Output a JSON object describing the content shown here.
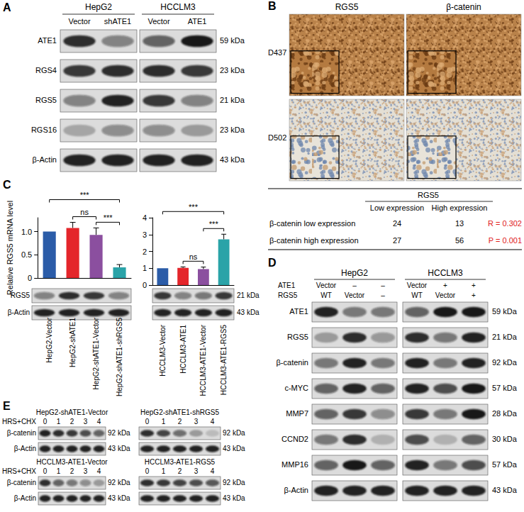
{
  "panels": {
    "A": {
      "letter": "A",
      "cell_lines": [
        {
          "name": "HepG2",
          "lanes": [
            "Vector",
            "shATE1"
          ]
        },
        {
          "name": "HCCLM3",
          "lanes": [
            "Vector",
            "ATE1"
          ]
        }
      ],
      "rows": [
        {
          "label": "ATE1",
          "kda": "59 kDa",
          "bands": [
            0.85,
            0.45,
            0.6,
            0.95
          ]
        },
        {
          "label": "RGS4",
          "kda": "23 kDa",
          "bands": [
            0.8,
            0.85,
            0.85,
            0.8
          ]
        },
        {
          "label": "RGS5",
          "kda": "21 kDa",
          "bands": [
            0.45,
            0.9,
            0.8,
            0.45
          ]
        },
        {
          "label": "RGS16",
          "kda": "23 kDa",
          "bands": [
            0.25,
            0.4,
            0.4,
            0.3
          ]
        },
        {
          "label": "β-Actin",
          "kda": "43 kDa",
          "bands": [
            0.9,
            0.9,
            0.9,
            0.9
          ]
        }
      ]
    },
    "B": {
      "letter": "B",
      "columns": [
        "RGS5",
        "β-catenin"
      ],
      "samples": [
        "D437",
        "D502"
      ],
      "table": {
        "header": "RGS5",
        "columns": [
          "Low expression",
          "High expression"
        ],
        "rows": [
          {
            "label": "β-catenin low expression",
            "values": [
              24,
              13
            ],
            "stat": "R = 0.302"
          },
          {
            "label": "β-catenin high expression",
            "values": [
              27,
              56
            ],
            "stat": "P = 0.001"
          }
        ]
      }
    },
    "C": {
      "letter": "C",
      "blots": [
        {
          "rows": [
            {
              "label": "RGS5",
              "bands": [
                0.45,
                0.85,
                0.8,
                0.45
              ]
            },
            {
              "label": "β-Actin",
              "bands": [
                0.9,
                0.9,
                0.9,
                0.9
              ]
            }
          ]
        },
        {
          "rows": [
            {
              "kda": "21 kDa",
              "bands": [
                0.8,
                0.45,
                0.5,
                0.8
              ]
            },
            {
              "kda": "43 kDa",
              "bands": [
                0.9,
                0.9,
                0.9,
                0.9
              ]
            }
          ]
        }
      ]
    },
    "D": {
      "letter": "D",
      "cell_lines": [
        {
          "name": "HepG2",
          "lanes": 3
        },
        {
          "name": "HCCLM3",
          "lanes": 3
        }
      ],
      "conditions": [
        {
          "label": "ATE1",
          "values": [
            "Vector",
            "–",
            "–",
            "Vector",
            "+",
            "+"
          ]
        },
        {
          "label": "RGS5",
          "values": [
            "WT",
            "Vector",
            "–",
            "WT",
            "Vector",
            "+"
          ]
        }
      ],
      "rows": [
        {
          "label": "ATE1",
          "kda": "59 kDa",
          "bands": [
            0.9,
            0.5,
            0.5,
            0.6,
            0.95,
            0.95
          ]
        },
        {
          "label": "RGS5",
          "kda": "21 kDa",
          "bands": [
            0.3,
            0.85,
            0.35,
            0.85,
            0.5,
            0.9
          ]
        },
        {
          "label": "β-catenin",
          "kda": "92 kDa",
          "bands": [
            0.5,
            0.9,
            0.5,
            0.9,
            0.5,
            0.9
          ]
        },
        {
          "label": "c-MYC",
          "kda": "57 kDa",
          "bands": [
            0.6,
            0.9,
            0.6,
            0.9,
            0.7,
            0.95
          ]
        },
        {
          "label": "MMP7",
          "kda": "28 kDa",
          "bands": [
            0.6,
            0.8,
            0.4,
            0.8,
            0.5,
            0.95
          ]
        },
        {
          "label": "CCND2",
          "kda": "30 kDa",
          "bands": [
            0.5,
            0.85,
            0.2,
            0.7,
            0.2,
            0.6
          ]
        },
        {
          "label": "MMP16",
          "kda": "57 kDa",
          "bands": [
            0.6,
            0.95,
            0.6,
            0.9,
            0.5,
            0.7
          ]
        },
        {
          "label": "β-Actin",
          "kda": "43 kDa",
          "bands": [
            0.9,
            0.9,
            0.9,
            0.9,
            0.9,
            0.9
          ]
        }
      ]
    },
    "E": {
      "letter": "E",
      "treatment": "HRS+CHX",
      "rows": [
        {
          "label": "β-catenin",
          "kda": "92 kDa"
        },
        {
          "label": "β-Actin",
          "kda": "43 kDa"
        }
      ],
      "blocks": [
        {
          "title": "HepG2-shATE1-Vector",
          "lanes": [
            0,
            1,
            2,
            3,
            4
          ],
          "bands": [
            [
              0.9,
              0.85,
              0.8,
              0.7,
              0.6
            ],
            [
              0.9,
              0.9,
              0.9,
              0.9,
              0.9
            ]
          ]
        },
        {
          "title": "HepG2-shATE1-shRGS5",
          "lanes": [
            0,
            1,
            2,
            3,
            4
          ],
          "bands": [
            [
              0.85,
              0.75,
              0.55,
              0.3,
              0.15
            ],
            [
              0.9,
              0.9,
              0.9,
              0.9,
              0.9
            ]
          ]
        },
        {
          "title": "HCCLM3-ATE1-Vector",
          "lanes": [
            0,
            1,
            2,
            3,
            4
          ],
          "bands": [
            [
              0.85,
              0.6,
              0.5,
              0.4,
              0.3
            ],
            [
              0.9,
              0.9,
              0.9,
              0.9,
              0.9
            ]
          ]
        },
        {
          "title": "HCCLM3-ATE1-RGS5",
          "lanes": [
            0,
            1,
            2,
            3,
            4
          ],
          "bands": [
            [
              0.85,
              0.8,
              0.75,
              0.7,
              0.65
            ],
            [
              0.9,
              0.9,
              0.9,
              0.9,
              0.9
            ]
          ]
        }
      ]
    }
  },
  "chart_data": [
    {
      "type": "bar",
      "categories": [
        "HepG2-Vector",
        "HepG2-shATE1",
        "HepG2-shATE1-Vector",
        "HepG2-shATE1-shRGS5"
      ],
      "values": [
        1,
        1.08,
        0.93,
        0.23
      ],
      "errors": [
        0,
        0.12,
        0.15,
        0.06
      ],
      "colors": [
        "#2b5ca8",
        "#e4262b",
        "#8b4f9f",
        "#2aa3a8"
      ],
      "ylim": [
        0,
        1.3
      ],
      "yticks": [
        0,
        0.5,
        {
          "value": 1,
          "label": "1.0"
        }
      ],
      "grid": false,
      "y_label": "Relative RGS5 mRNA level",
      "annotations": [
        {
          "from": 0,
          "to": 3,
          "text": "***"
        },
        {
          "from": 1,
          "to": 2,
          "text": "ns"
        },
        {
          "from": 2,
          "to": 3,
          "text": "***"
        }
      ]
    },
    {
      "type": "bar",
      "categories": [
        "HCCLM3-Vector",
        "HCCLM3-ATE1",
        "HCCLM3-ATE1-Vector",
        "HCCLM3-ATE1-RGS5"
      ],
      "values": [
        1,
        1.02,
        0.95,
        2.72
      ],
      "errors": [
        0,
        0.06,
        0.12,
        0.3
      ],
      "colors": [
        "#2b5ca8",
        "#e4262b",
        "#8b4f9f",
        "#2aa3a8"
      ],
      "ylim": [
        0,
        4
      ],
      "yticks": [
        0,
        1,
        2,
        3,
        4
      ],
      "grid": false,
      "annotations": [
        {
          "from": 0,
          "to": 3,
          "text": "***"
        },
        {
          "from": 1,
          "to": 2,
          "text": "ns"
        },
        {
          "from": 2,
          "to": 3,
          "text": "***"
        }
      ]
    }
  ]
}
